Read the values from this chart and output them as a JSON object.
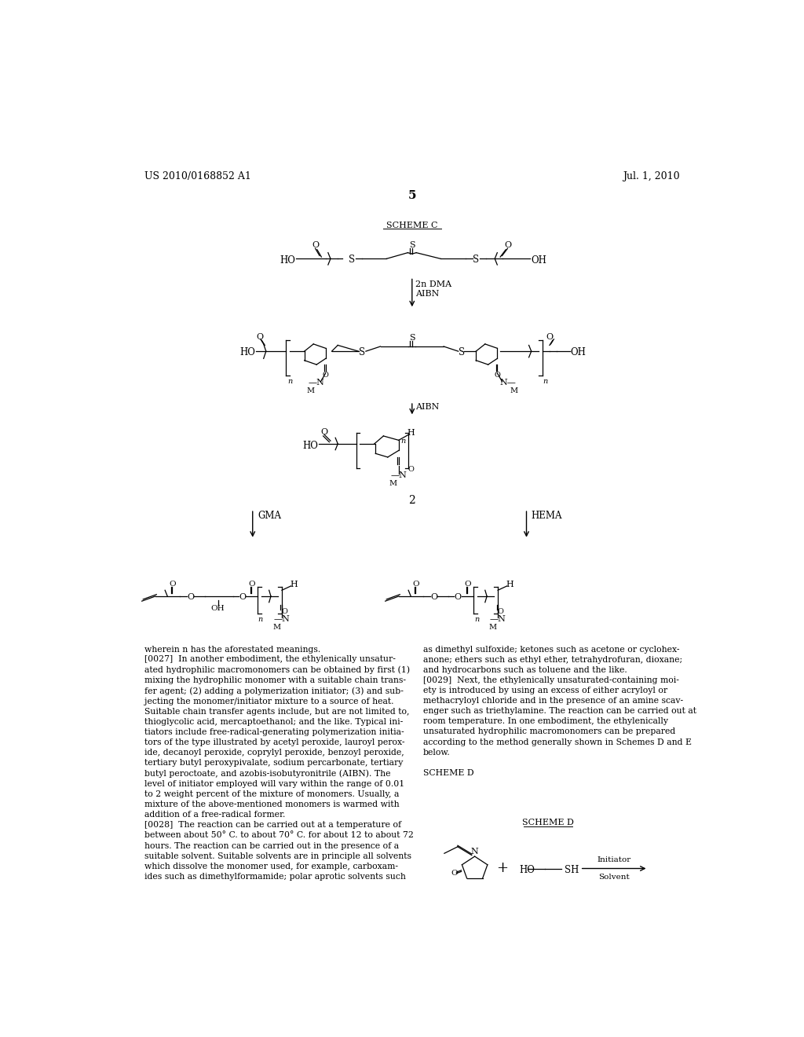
{
  "background_color": "#ffffff",
  "header_left": "US 2010/0168852 A1",
  "header_right": "Jul. 1, 2010",
  "page_number": "5",
  "scheme_label": "SCHEME C",
  "label_2": "2",
  "arrow1_label": "2n DMA\nAIBN",
  "arrow2_label": "AIBN",
  "arrow3_label": "GMA",
  "arrow4_label": "HEMA",
  "body_text_left": "[0027]  In another embodiment, the ethylenically unsatur-\nated hydrophilic macromonomers can be obtained by first (1)\nmixing the hydrophilic monomer with a suitable chain trans-\nfer agent; (2) adding a polymerization initiator; (3) and sub-\njecting the monomer/initiator mixture to a source of heat.\nSuitable chain transfer agents include, but are not limited to,\nthioglycolic acid, mercaptoethanol; and the like. Typical ini-\ntiators include free-radical-generating polymerization initia-\ntors of the type illustrated by acetyl peroxide, lauroyl perox-\nide, decanoyl peroxide, coprylyl peroxide, benzoyl peroxide,\ntertiary butyl peroxypivalate, sodium percarbonate, tertiary\nbutyl peroctoate, and azobis-isobutyronitrile (AIBN). The\nlevel of initiator employed will vary within the range of 0.01\nto 2 weight percent of the mixture of monomers. Usually, a\nmixture of the above-mentioned monomers is warmed with\naddition of a free-radical former.\n[0028]  The reaction can be carried out at a temperature of\nbetween about 50° C. to about 70° C. for about 12 to about 72\nhours. The reaction can be carried out in the presence of a\nsuitable solvent. Suitable solvents are in principle all solvents\nwhich dissolve the monomer used, for example, carboxam-\nides such as dimethylformamide; polar aprotic solvents such",
  "body_text_right": "as dimethyl sulfoxide; ketones such as acetone or cyclohex-\nanone; ethers such as ethyl ether, tetrahydrofuran, dioxane;\nand hydrocarbons such as toluene and the like.\n[0029]  Next, the ethylenically unsaturated-containing moi-\nety is introduced by using an excess of either acryloyl or\nmethacryloyl chloride and in the presence of an amine scav-\nenger such as triethylamine. The reaction can be carried out at\nroom temperature. In one embodiment, the ethylenically\nunsaturated hydrophilic macromonomers can be prepared\naccording to the method generally shown in Schemes D and E\nbelow.\n\nSCHEME D",
  "wherein_text": "wherein n has the aforestated meanings.",
  "figsize": [
    10.24,
    13.2
  ],
  "dpi": 100
}
